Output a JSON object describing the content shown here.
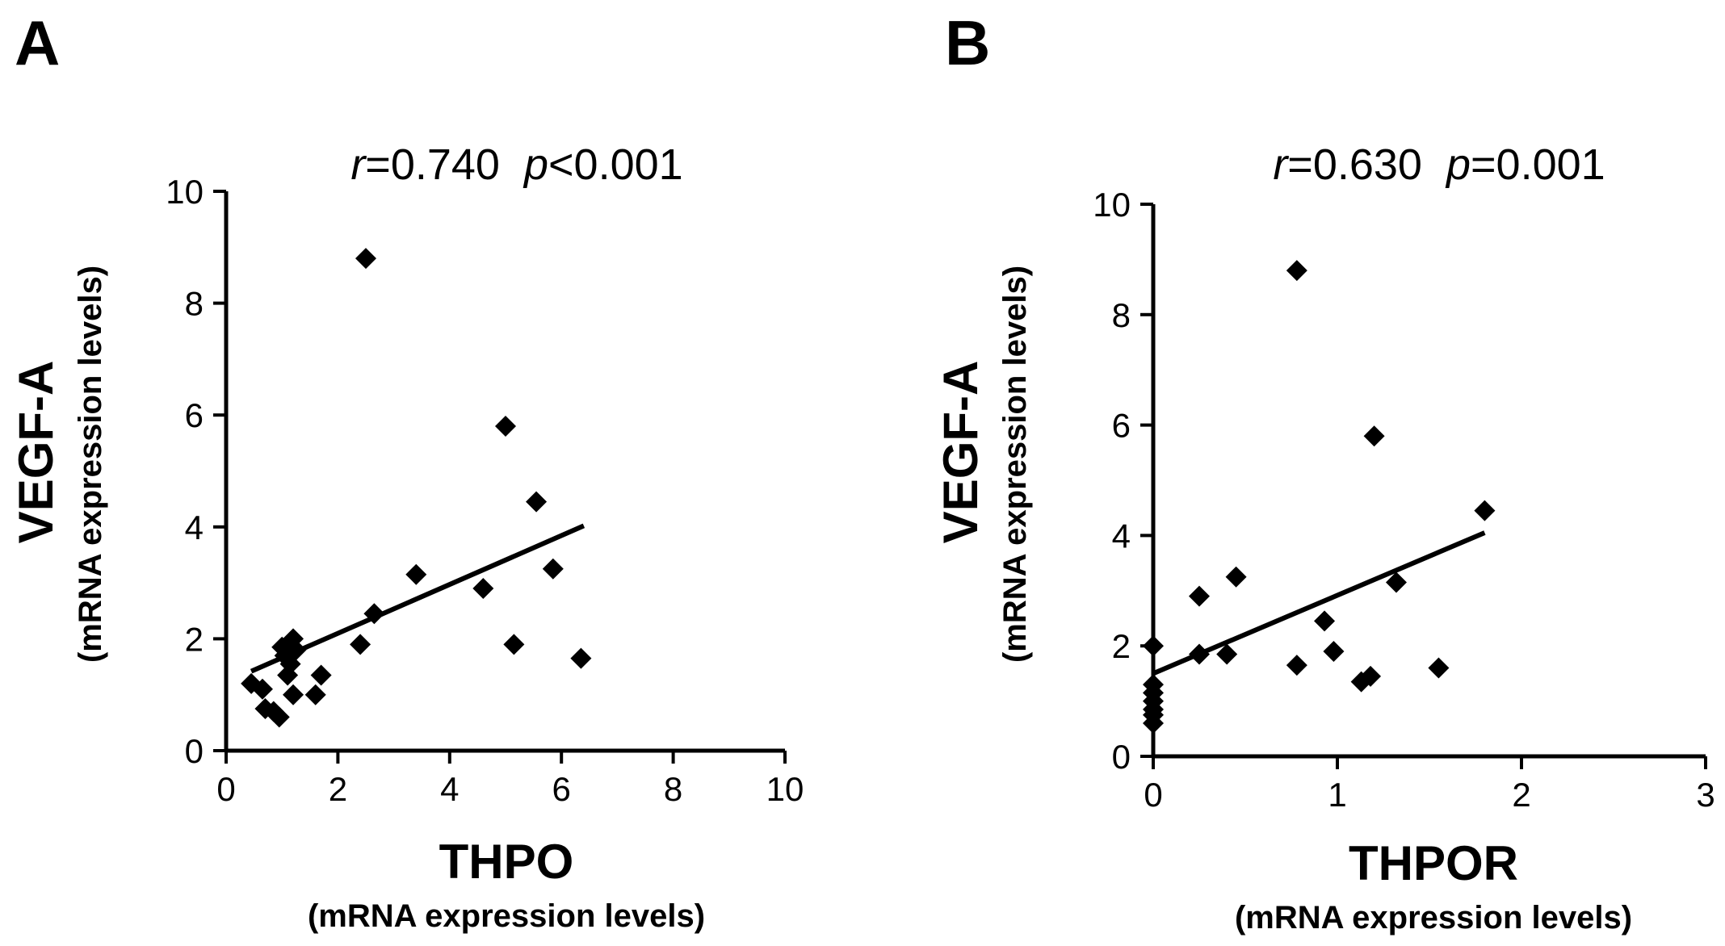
{
  "chart_data": [
    {
      "panel": "A",
      "type": "scatter",
      "stat_r_label": "r",
      "stat_r_value": "=0.740",
      "stat_p_label": "p",
      "stat_p_value": "<0.001",
      "ylabel": "VEGF-A",
      "ylabel_sub": "(mRNA expression levels)",
      "xlabel": "THPO",
      "xlabel_sub": "(mRNA expression levels)",
      "xlim": [
        0,
        10
      ],
      "ylim": [
        0,
        10
      ],
      "xticks": [
        0,
        2,
        4,
        6,
        8,
        10
      ],
      "yticks": [
        0,
        2,
        4,
        6,
        8,
        10
      ],
      "x": [
        0.45,
        0.65,
        0.7,
        0.85,
        0.95,
        1.0,
        1.05,
        1.1,
        1.15,
        1.2,
        1.2,
        1.25,
        1.6,
        1.7,
        2.4,
        2.5,
        2.65,
        3.4,
        4.6,
        5.0,
        5.15,
        5.55,
        5.85,
        6.35
      ],
      "y": [
        1.2,
        1.1,
        0.75,
        0.7,
        0.6,
        1.85,
        1.7,
        1.35,
        1.55,
        2.0,
        1.0,
        1.8,
        1.0,
        1.35,
        1.9,
        8.8,
        2.45,
        3.15,
        2.9,
        5.8,
        1.9,
        4.45,
        3.25,
        1.65
      ],
      "fit": {
        "x": [
          0.45,
          6.4
        ],
        "y": [
          1.42,
          4.02
        ]
      }
    },
    {
      "panel": "B",
      "type": "scatter",
      "stat_r_label": "r",
      "stat_r_value": "=0.630",
      "stat_p_label": "p",
      "stat_p_value": "=0.001",
      "ylabel": "VEGF-A",
      "ylabel_sub": "(mRNA expression levels)",
      "xlabel": "THPOR",
      "xlabel_sub": "(mRNA expression levels)",
      "xlim": [
        0,
        3
      ],
      "ylim": [
        0,
        10
      ],
      "xticks": [
        0,
        1,
        2,
        3
      ],
      "yticks": [
        0,
        2,
        4,
        6,
        8,
        10
      ],
      "x": [
        0.0,
        0.0,
        0.0,
        0.0,
        0.0,
        0.0,
        0.0,
        0.25,
        0.25,
        0.4,
        0.45,
        0.78,
        0.78,
        0.93,
        0.98,
        1.13,
        1.18,
        1.2,
        1.32,
        1.55,
        1.8
      ],
      "y": [
        2.0,
        1.3,
        1.15,
        1.0,
        0.85,
        0.75,
        0.6,
        2.9,
        1.85,
        1.85,
        3.25,
        8.8,
        1.65,
        2.45,
        1.9,
        1.35,
        1.45,
        5.8,
        3.15,
        1.6,
        4.45
      ],
      "fit": {
        "x": [
          0.0,
          1.8
        ],
        "y": [
          1.5,
          4.05
        ]
      }
    }
  ]
}
